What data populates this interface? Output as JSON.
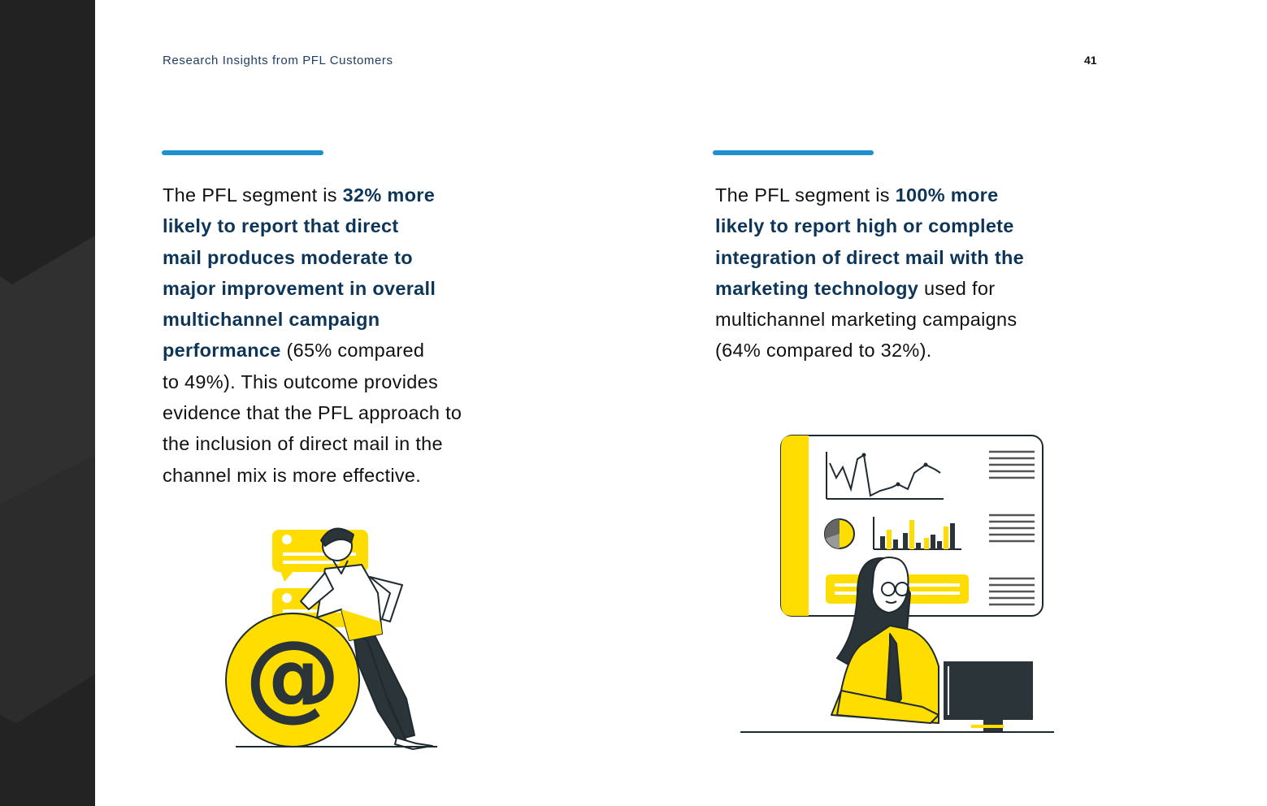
{
  "header": {
    "running_head": "Research Insights from PFL Customers",
    "page_number": "41"
  },
  "left_column": {
    "intro": "The PFL segment is ",
    "lines": [
      {
        "text": "32% more",
        "bold": true,
        "br": true
      },
      {
        "text": "likely to report that direct",
        "bold": true,
        "br": true
      },
      {
        "text": "mail produces moderate to",
        "bold": true,
        "br": true
      },
      {
        "text": "major improvement in overall",
        "bold": true,
        "br": true
      },
      {
        "text": "multichannel campaign",
        "bold": true,
        "br": true
      },
      {
        "text": "performance",
        "bold": true,
        "br": false
      },
      {
        "text": " (65% compared",
        "bold": false,
        "br": true
      },
      {
        "text": "to 49%). This outcome provides",
        "bold": false,
        "br": true
      },
      {
        "text": "evidence that the PFL approach to",
        "bold": false,
        "br": true
      },
      {
        "text": "the inclusion of direct mail in the",
        "bold": false,
        "br": true
      },
      {
        "text": "channel mix is more effective.",
        "bold": false,
        "br": false
      }
    ]
  },
  "right_column": {
    "intro": "The PFL segment is ",
    "lines": [
      {
        "text": "100% more",
        "bold": true,
        "br": true
      },
      {
        "text": "likely to report high or complete",
        "bold": true,
        "br": true
      },
      {
        "text": "integration of direct mail with the",
        "bold": true,
        "br": true
      },
      {
        "text": "marketing technology",
        "bold": true,
        "br": false
      },
      {
        "text": " used for",
        "bold": false,
        "br": true
      },
      {
        "text": "multichannel marketing campaigns",
        "bold": false,
        "br": true
      },
      {
        "text": "(64% compared to 32%).",
        "bold": false,
        "br": false
      }
    ]
  },
  "illustrations": {
    "left_glyph": "@"
  },
  "colors": {
    "accent_blue": "#1f8fd0",
    "heading_navy": "#0d3558",
    "brand_yellow": "#ffdd00",
    "dark": "#2b3439",
    "sidebar": "#2a2a2a"
  }
}
